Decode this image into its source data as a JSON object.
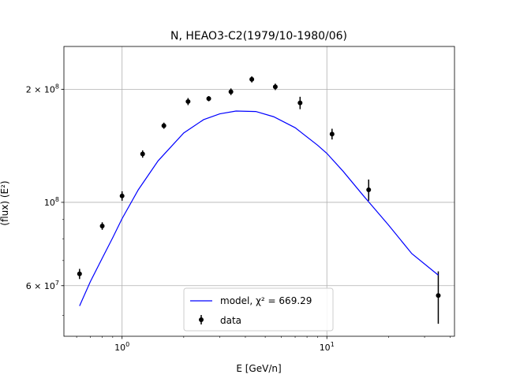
{
  "chart_data": {
    "type": "scatter",
    "title": "N, HEAO3-C2(1979/10-1980/06)",
    "xlabel": "E [GeV/n]",
    "ylabel": "(flux) (E²)",
    "xscale": "log",
    "yscale": "log",
    "xlim": [
      0.52,
      42
    ],
    "ylim": [
      44000000,
      260000000
    ],
    "grid": true,
    "x_ticks": [
      {
        "value": 1,
        "base": "10",
        "exp": "0"
      },
      {
        "value": 10,
        "base": "10",
        "exp": "1"
      }
    ],
    "y_ticks": [
      {
        "value": 60000000,
        "mant": "6 × 10",
        "exp": "7"
      },
      {
        "value": 100000000,
        "mant": "10",
        "exp": "8"
      },
      {
        "value": 200000000,
        "mant": "2 × 10",
        "exp": "8"
      }
    ],
    "legend": {
      "position": "lower-center",
      "model_label": "model, χ² = 669.29",
      "data_label": "data"
    },
    "series": [
      {
        "name": "data",
        "style": "errorbar",
        "color": "#000000",
        "x": [
          0.62,
          0.8,
          1.0,
          1.26,
          1.6,
          2.1,
          2.65,
          3.4,
          4.3,
          5.6,
          7.4,
          10.6,
          16.0,
          35.0
        ],
        "y": [
          64500000,
          86500000,
          104000000,
          134500000,
          160000000,
          185500000,
          188800000,
          197000000,
          212500000,
          203000000,
          184000000,
          152000000,
          108000000,
          56500000
        ],
        "err": [
          2000000,
          2000000,
          3000000,
          3000000,
          3000000,
          4000000,
          3000000,
          4000000,
          4000000,
          4000000,
          7000000,
          5000000,
          7000000,
          9000000
        ]
      },
      {
        "name": "model",
        "style": "line",
        "color": "#0000ff",
        "x": [
          0.62,
          0.7,
          0.8,
          0.9,
          1.0,
          1.2,
          1.5,
          2.0,
          2.5,
          3.0,
          3.6,
          4.5,
          5.5,
          7.0,
          9.0,
          10.0,
          12.0,
          15.0,
          20.0,
          26.0,
          35.0
        ],
        "y": [
          53000000,
          61500000,
          71000000,
          80500000,
          90500000,
          108000000,
          129000000,
          153000000,
          166000000,
          172000000,
          175000000,
          174500000,
          169000000,
          158000000,
          142000000,
          135000000,
          121000000,
          104500000,
          87000000,
          73000000,
          64000000
        ]
      }
    ]
  }
}
